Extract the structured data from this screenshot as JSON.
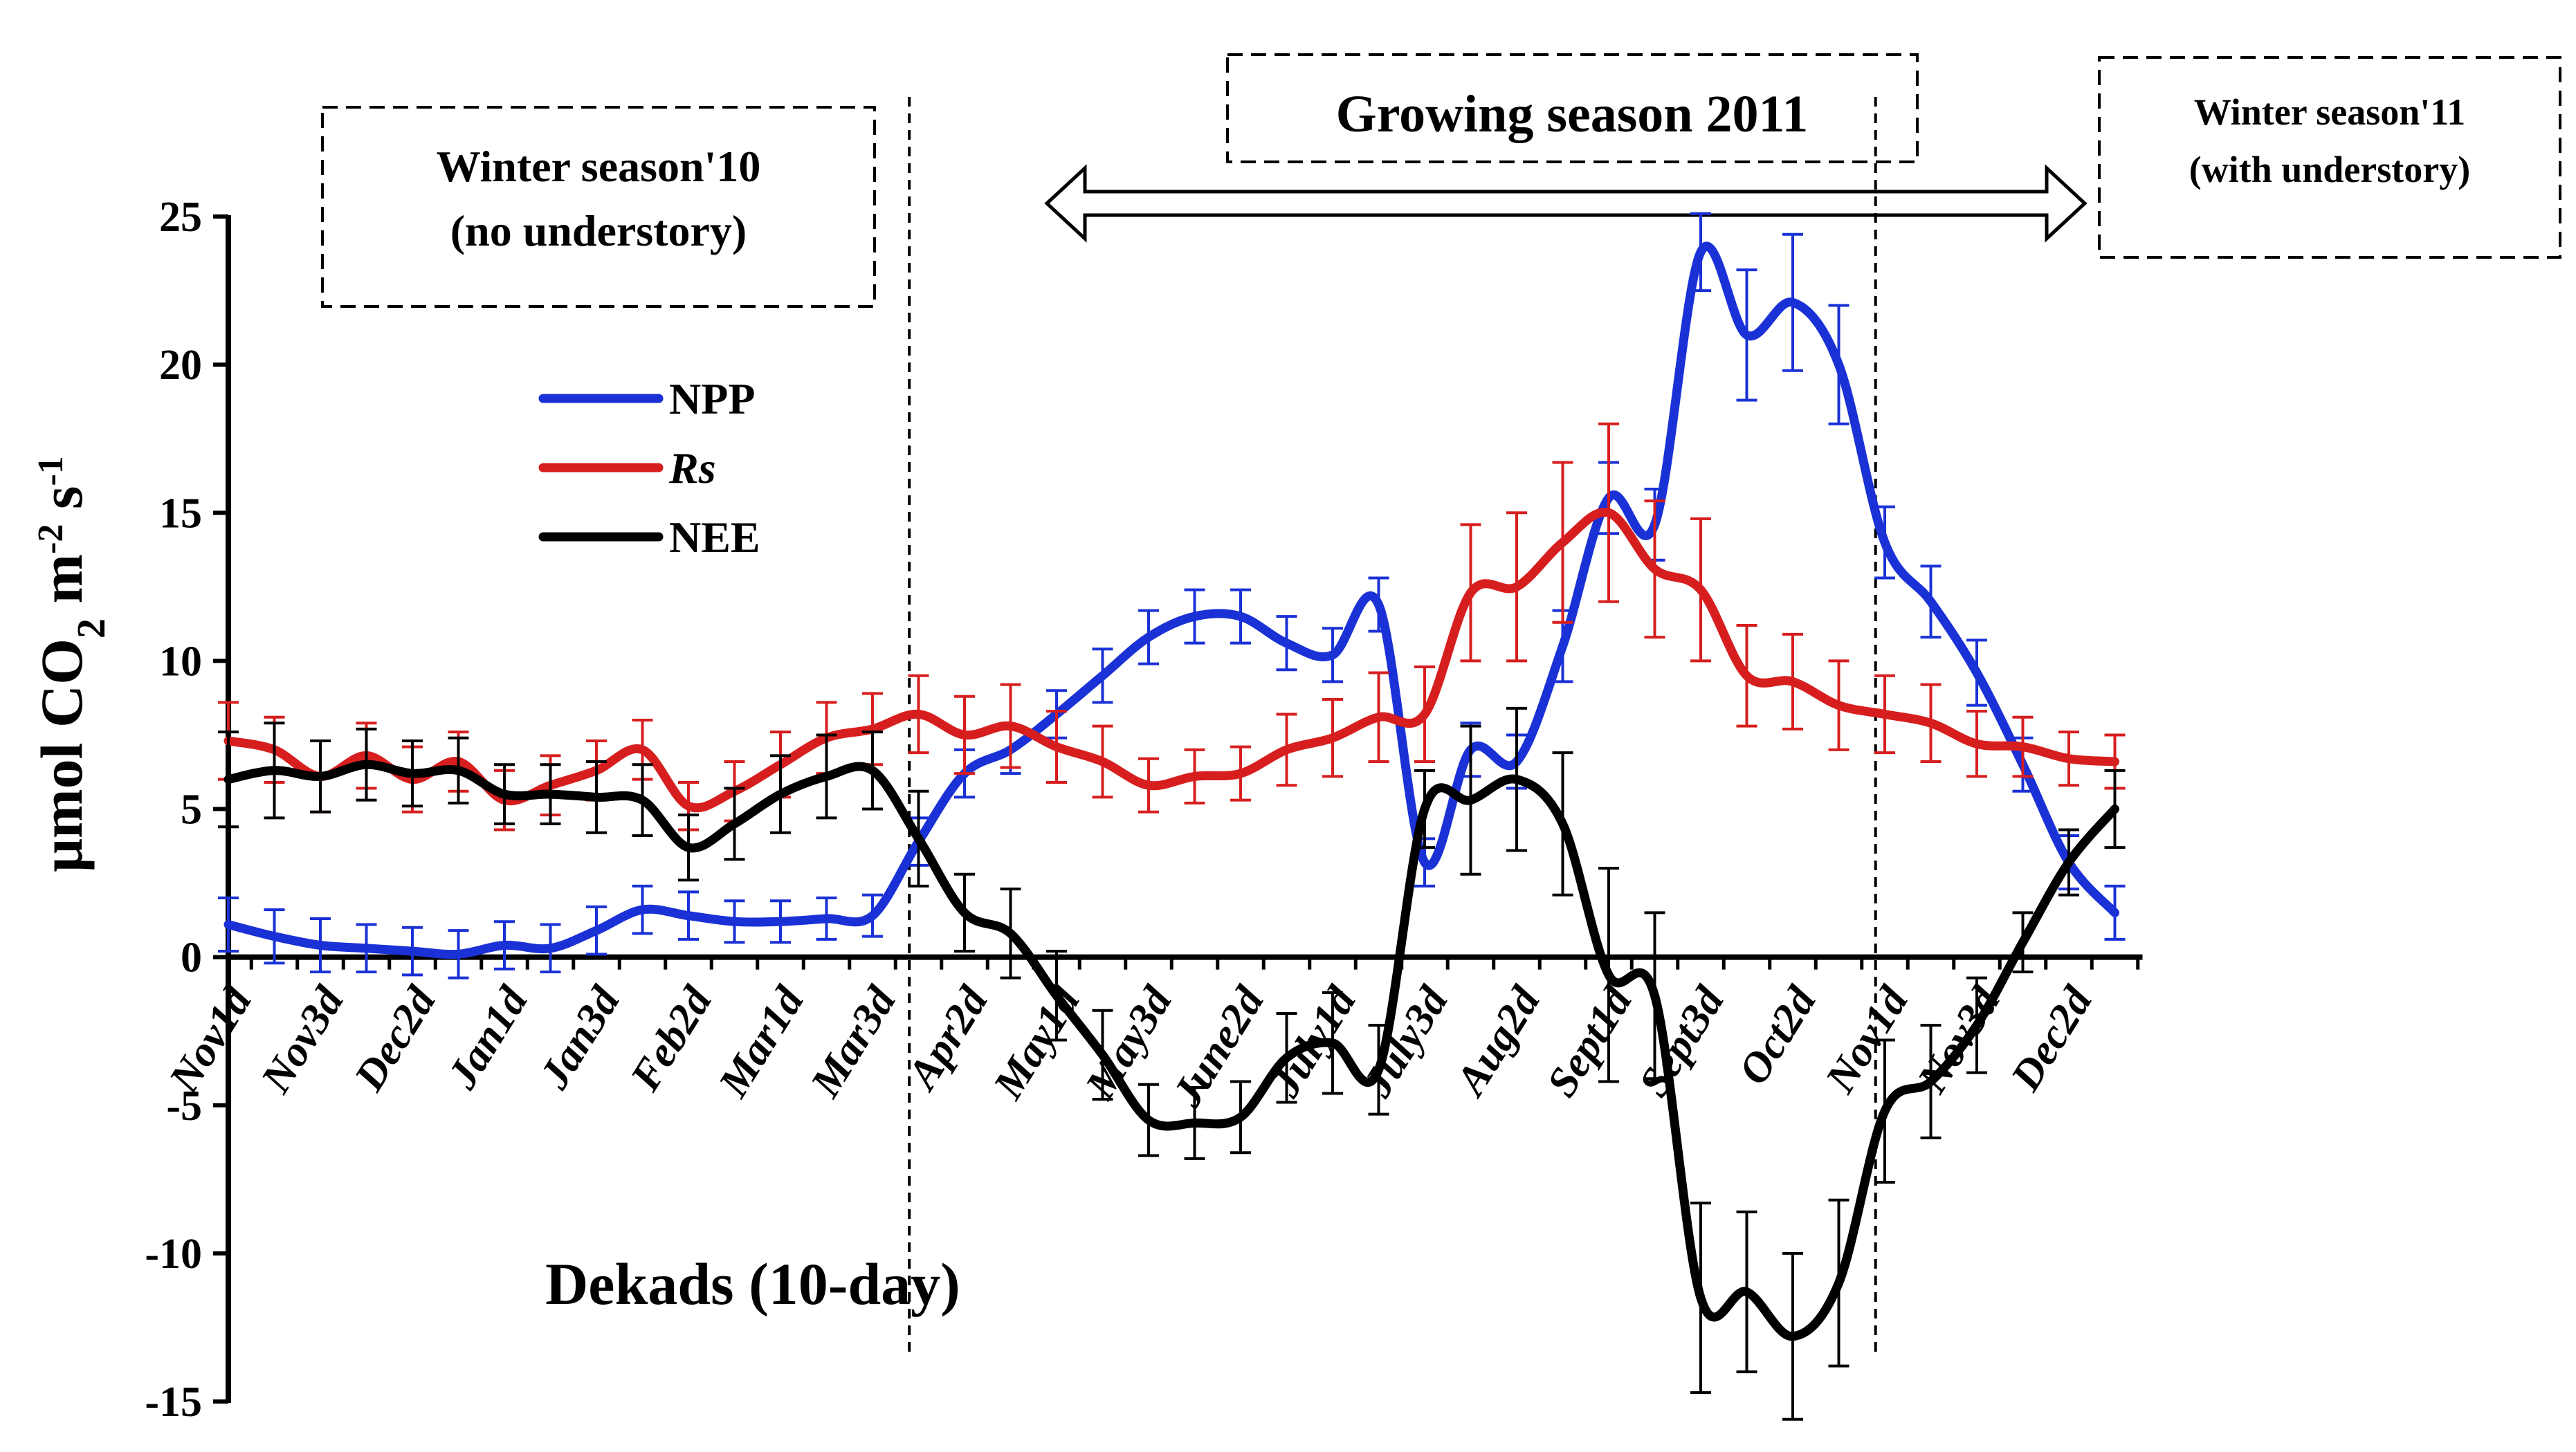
{
  "chart_data": {
    "type": "line",
    "title": "",
    "ylabel_parts": {
      "main": "μmol CO",
      "sub": "2",
      "unit_m": " m",
      "sup1": "-2",
      "unit_s": " s",
      "sup2": "-1"
    },
    "xlabel": "Dekads (10-day)",
    "ylim": [
      -15,
      25
    ],
    "yticks": [
      -15,
      -10,
      -5,
      0,
      5,
      10,
      15,
      20,
      25
    ],
    "x_count": 42,
    "x_tick_labels": [
      {
        "label": "Nov1d",
        "index": 0
      },
      {
        "label": "Nov3d",
        "index": 2
      },
      {
        "label": "Dec2d",
        "index": 4
      },
      {
        "label": "Jan1d",
        "index": 6
      },
      {
        "label": "Jan3d",
        "index": 8
      },
      {
        "label": "Feb2d",
        "index": 10
      },
      {
        "label": "Mar1d",
        "index": 12
      },
      {
        "label": "Mar3d",
        "index": 14
      },
      {
        "label": "Apr2d",
        "index": 16
      },
      {
        "label": "May1d",
        "index": 18
      },
      {
        "label": "May3d",
        "index": 20
      },
      {
        "label": "June2d",
        "index": 22
      },
      {
        "label": "July1d",
        "index": 24
      },
      {
        "label": "July3d",
        "index": 26
      },
      {
        "label": "Aug2d",
        "index": 28
      },
      {
        "label": "Sept1d",
        "index": 30
      },
      {
        "label": "Sept3d",
        "index": 32
      },
      {
        "label": "Oct2d",
        "index": 34
      },
      {
        "label": "Nov1d",
        "index": 36
      },
      {
        "label": "Nov3d",
        "index": 38
      },
      {
        "label": "Dec2d",
        "index": 40
      }
    ],
    "season_dividers": [
      14.8,
      35.8
    ],
    "annotations": {
      "winter10": {
        "line1": "Winter season'10",
        "line2": "(no understory)"
      },
      "growing": "Growing season 2011",
      "winter11": {
        "line1": "Winter season'11",
        "line2": "(with understory)"
      }
    },
    "series": [
      {
        "name": "NPP",
        "italic": false,
        "color": "#1a31d6",
        "values": [
          1.1,
          0.7,
          0.4,
          0.3,
          0.2,
          0.1,
          0.4,
          0.3,
          0.9,
          1.6,
          1.4,
          1.2,
          1.2,
          1.3,
          1.4,
          3.9,
          6.2,
          7.0,
          8.2,
          9.5,
          10.8,
          11.5,
          11.5,
          10.6,
          10.2,
          11.9,
          3.2,
          7.0,
          6.6,
          10.5,
          15.5,
          14.6,
          23.8,
          21.0,
          22.1,
          20.0,
          14.0,
          12.0,
          9.6,
          6.5,
          3.2,
          1.5
        ],
        "errors": [
          0.9,
          0.9,
          0.9,
          0.8,
          0.8,
          0.8,
          0.8,
          0.8,
          0.8,
          0.8,
          0.8,
          0.7,
          0.7,
          0.7,
          0.7,
          0.8,
          0.8,
          0.8,
          0.8,
          0.9,
          0.9,
          0.9,
          0.9,
          0.9,
          0.9,
          0.9,
          0.8,
          0.9,
          0.9,
          1.2,
          1.2,
          1.2,
          1.3,
          2.2,
          2.3,
          2.0,
          1.2,
          1.2,
          1.1,
          0.9,
          0.9,
          0.9
        ]
      },
      {
        "name": "Rs",
        "italic": true,
        "color": "#d71e1e",
        "values": [
          7.3,
          7.0,
          6.1,
          6.8,
          6.0,
          6.6,
          5.3,
          5.8,
          6.3,
          7.0,
          5.1,
          5.6,
          6.5,
          7.4,
          7.7,
          8.2,
          7.5,
          7.8,
          7.1,
          6.6,
          5.8,
          6.1,
          6.2,
          7.0,
          7.4,
          8.1,
          8.2,
          12.3,
          12.5,
          14.0,
          15.0,
          13.1,
          12.4,
          9.5,
          9.3,
          8.5,
          8.2,
          7.9,
          7.2,
          7.1,
          6.7,
          6.6
        ],
        "errors": [
          1.3,
          1.1,
          1.2,
          1.1,
          1.1,
          1.0,
          1.0,
          1.0,
          1.0,
          1.0,
          0.8,
          1.0,
          1.1,
          1.2,
          1.2,
          1.3,
          1.3,
          1.4,
          1.2,
          1.2,
          0.9,
          0.9,
          0.9,
          1.2,
          1.3,
          1.5,
          1.6,
          2.3,
          2.5,
          2.7,
          3.0,
          2.3,
          2.4,
          1.7,
          1.6,
          1.5,
          1.3,
          1.3,
          1.1,
          1.0,
          0.9,
          0.9
        ]
      },
      {
        "name": "NEE",
        "italic": false,
        "color": "#000000",
        "values": [
          6.0,
          6.3,
          6.1,
          6.5,
          6.2,
          6.3,
          5.5,
          5.5,
          5.4,
          5.3,
          3.7,
          4.5,
          5.5,
          6.1,
          6.3,
          4.0,
          1.5,
          0.8,
          -1.3,
          -3.3,
          -5.5,
          -5.6,
          -5.4,
          -3.4,
          -2.9,
          -3.8,
          5.0,
          5.3,
          6.0,
          4.5,
          -0.6,
          -1.3,
          -11.5,
          -11.3,
          -12.8,
          -11.0,
          -5.2,
          -4.2,
          -2.3,
          0.5,
          3.2,
          5.0
        ],
        "errors": [
          1.6,
          1.6,
          1.2,
          1.2,
          1.1,
          1.1,
          1.0,
          1.0,
          1.2,
          1.2,
          1.1,
          1.2,
          1.3,
          1.4,
          1.3,
          1.6,
          1.3,
          1.5,
          1.5,
          1.5,
          1.2,
          1.2,
          1.2,
          1.5,
          1.7,
          1.5,
          1.3,
          2.5,
          2.4,
          2.4,
          3.6,
          2.8,
          3.2,
          2.7,
          2.8,
          2.8,
          2.4,
          1.9,
          1.6,
          1.0,
          1.1,
          1.3
        ]
      }
    ]
  }
}
